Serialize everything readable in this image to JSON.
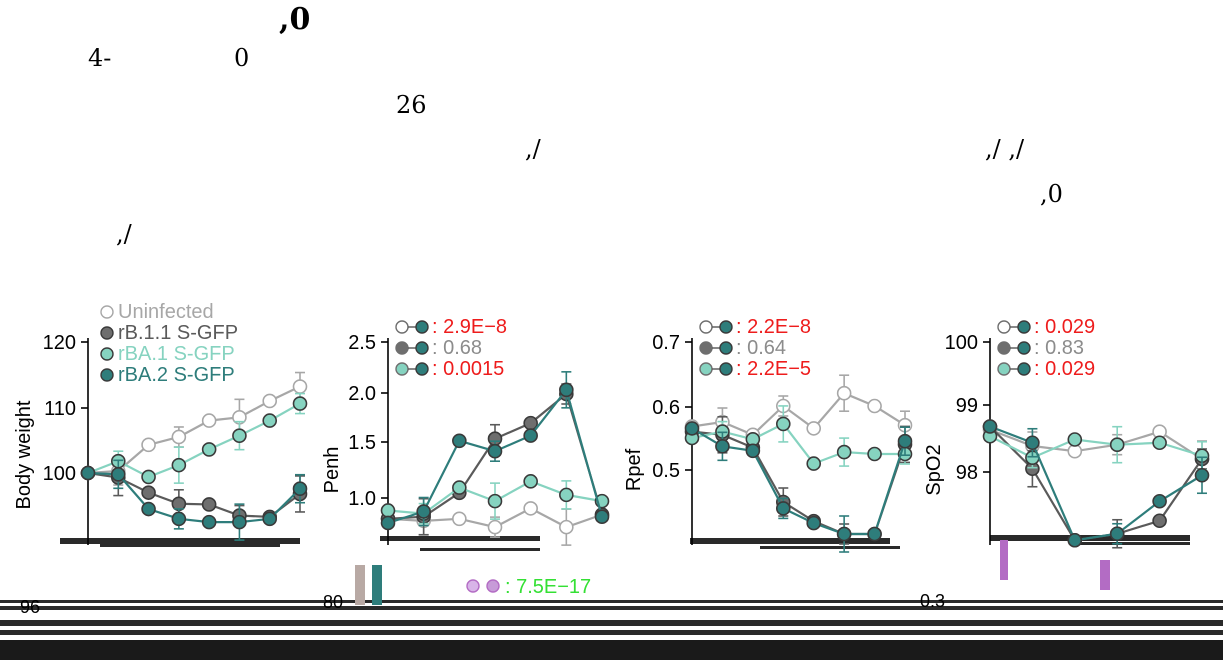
{
  "header_fragments": [
    ",0",
    "4-",
    "0",
    "26",
    ",/",
    ",/ ,/",
    ",0",
    ",/"
  ],
  "colors": {
    "uninfected": "#a7a7a7",
    "rB11": "#5a5a5a",
    "rBA1": "#86d3c0",
    "rBA2": "#2e7d7b",
    "red": "#ee1c1c",
    "gray": "#8c8c8c",
    "green": "#34e034",
    "purple": "#b36cc4"
  },
  "extra_label": "7.5E−17",
  "chart_data": [
    {
      "type": "line",
      "ylabel": "Body weight",
      "ylim": [
        95,
        122
      ],
      "yticks": [
        "100",
        "110",
        "120"
      ],
      "legend": [
        "Uninfected",
        "rB.1.1 S-GFP",
        "rBA.1 S-GFP",
        "rBA.2 S-GFP"
      ],
      "x": [
        0,
        1,
        2,
        3,
        4,
        5,
        6,
        7
      ],
      "series": [
        {
          "name": "Uninfected",
          "values": [
            100,
            100.3,
            104.3,
            105.5,
            108,
            108.5,
            111,
            113.2
          ]
        },
        {
          "name": "rB.1.1 S-GFP",
          "values": [
            100,
            99.3,
            97,
            95.3,
            95.2,
            93.5,
            93.3,
            96.8
          ]
        },
        {
          "name": "rBA.1 S-GFP",
          "values": [
            100,
            101.8,
            99.4,
            101.2,
            103.6,
            105.7,
            108,
            110.6
          ]
        },
        {
          "name": "rBA.2 S-GFP",
          "values": [
            100,
            99.8,
            94.5,
            93,
            92.5,
            92.5,
            93,
            97.6
          ]
        }
      ]
    },
    {
      "type": "line",
      "ylabel": "Penh",
      "ylim": [
        0.68,
        2.55
      ],
      "yticks": [
        "1.0",
        "1.5",
        "2.0",
        "2.5"
      ],
      "pvalues": [
        "2.9E−8",
        "0.68",
        "0.0015"
      ],
      "x": [
        0,
        1,
        2,
        3,
        4,
        5,
        6
      ],
      "series": [
        {
          "name": "Uninfected",
          "values": [
            0.8,
            0.78,
            0.8,
            0.72,
            0.9,
            0.72,
            0.84
          ]
        },
        {
          "name": "rB.1.1 S-GFP",
          "values": [
            0.8,
            0.82,
            1.05,
            1.57,
            1.72,
            2.0,
            0.84
          ]
        },
        {
          "name": "rBA.1 S-GFP",
          "values": [
            0.88,
            0.85,
            1.1,
            0.97,
            1.16,
            1.03,
            0.97
          ]
        },
        {
          "name": "rBA.2 S-GFP",
          "values": [
            0.76,
            0.87,
            1.55,
            1.45,
            1.6,
            2.04,
            0.82
          ]
        }
      ]
    },
    {
      "type": "line",
      "ylabel": "Rpef",
      "ylim": [
        0.41,
        0.72
      ],
      "yticks": [
        "0.5",
        "0.6",
        "0.7"
      ],
      "pvalues": [
        "2.2E−8",
        "0.64",
        "2.2E−5"
      ],
      "x": [
        0,
        1,
        2,
        3,
        4,
        5,
        6,
        7
      ],
      "series": [
        {
          "name": "Uninfected",
          "values": [
            0.568,
            0.575,
            0.555,
            0.6,
            0.565,
            0.62,
            0.6,
            0.57
          ]
        },
        {
          "name": "rB.1.1 S-GFP",
          "values": [
            0.56,
            0.555,
            0.535,
            0.45,
            0.42,
            0.4,
            0.4,
            0.54
          ]
        },
        {
          "name": "rBA.1 S-GFP",
          "values": [
            0.55,
            0.56,
            0.548,
            0.572,
            0.51,
            0.528,
            0.525,
            0.525
          ]
        },
        {
          "name": "rBA.2 S-GFP",
          "values": [
            0.565,
            0.537,
            0.53,
            0.44,
            0.417,
            0.4,
            0.4,
            0.545
          ]
        }
      ]
    },
    {
      "type": "line",
      "ylabel": "SpO2",
      "ylim": [
        96.8,
        100.2
      ],
      "yticks": [
        "98",
        "99",
        "100"
      ],
      "pvalues": [
        "0.029",
        "0.83",
        "0.029"
      ],
      "x": [
        0,
        1,
        2,
        3,
        4,
        5
      ],
      "series": [
        {
          "name": "Uninfected",
          "values": [
            98.65,
            98.4,
            98.32,
            98.42,
            98.62,
            98.2
          ]
        },
        {
          "name": "rB.1.1 S-GFP",
          "values": [
            98.7,
            98.05,
            96.95,
            97.05,
            97.25,
            98.2
          ]
        },
        {
          "name": "rBA.1 S-GFP",
          "values": [
            98.55,
            98.22,
            98.5,
            98.42,
            98.45,
            98.25
          ]
        },
        {
          "name": "rBA.2 S-GFP",
          "values": [
            98.7,
            98.45,
            96.95,
            97.05,
            97.55,
            97.95
          ]
        }
      ]
    }
  ],
  "bottom_ticks": [
    "96",
    "80",
    "0.3"
  ]
}
